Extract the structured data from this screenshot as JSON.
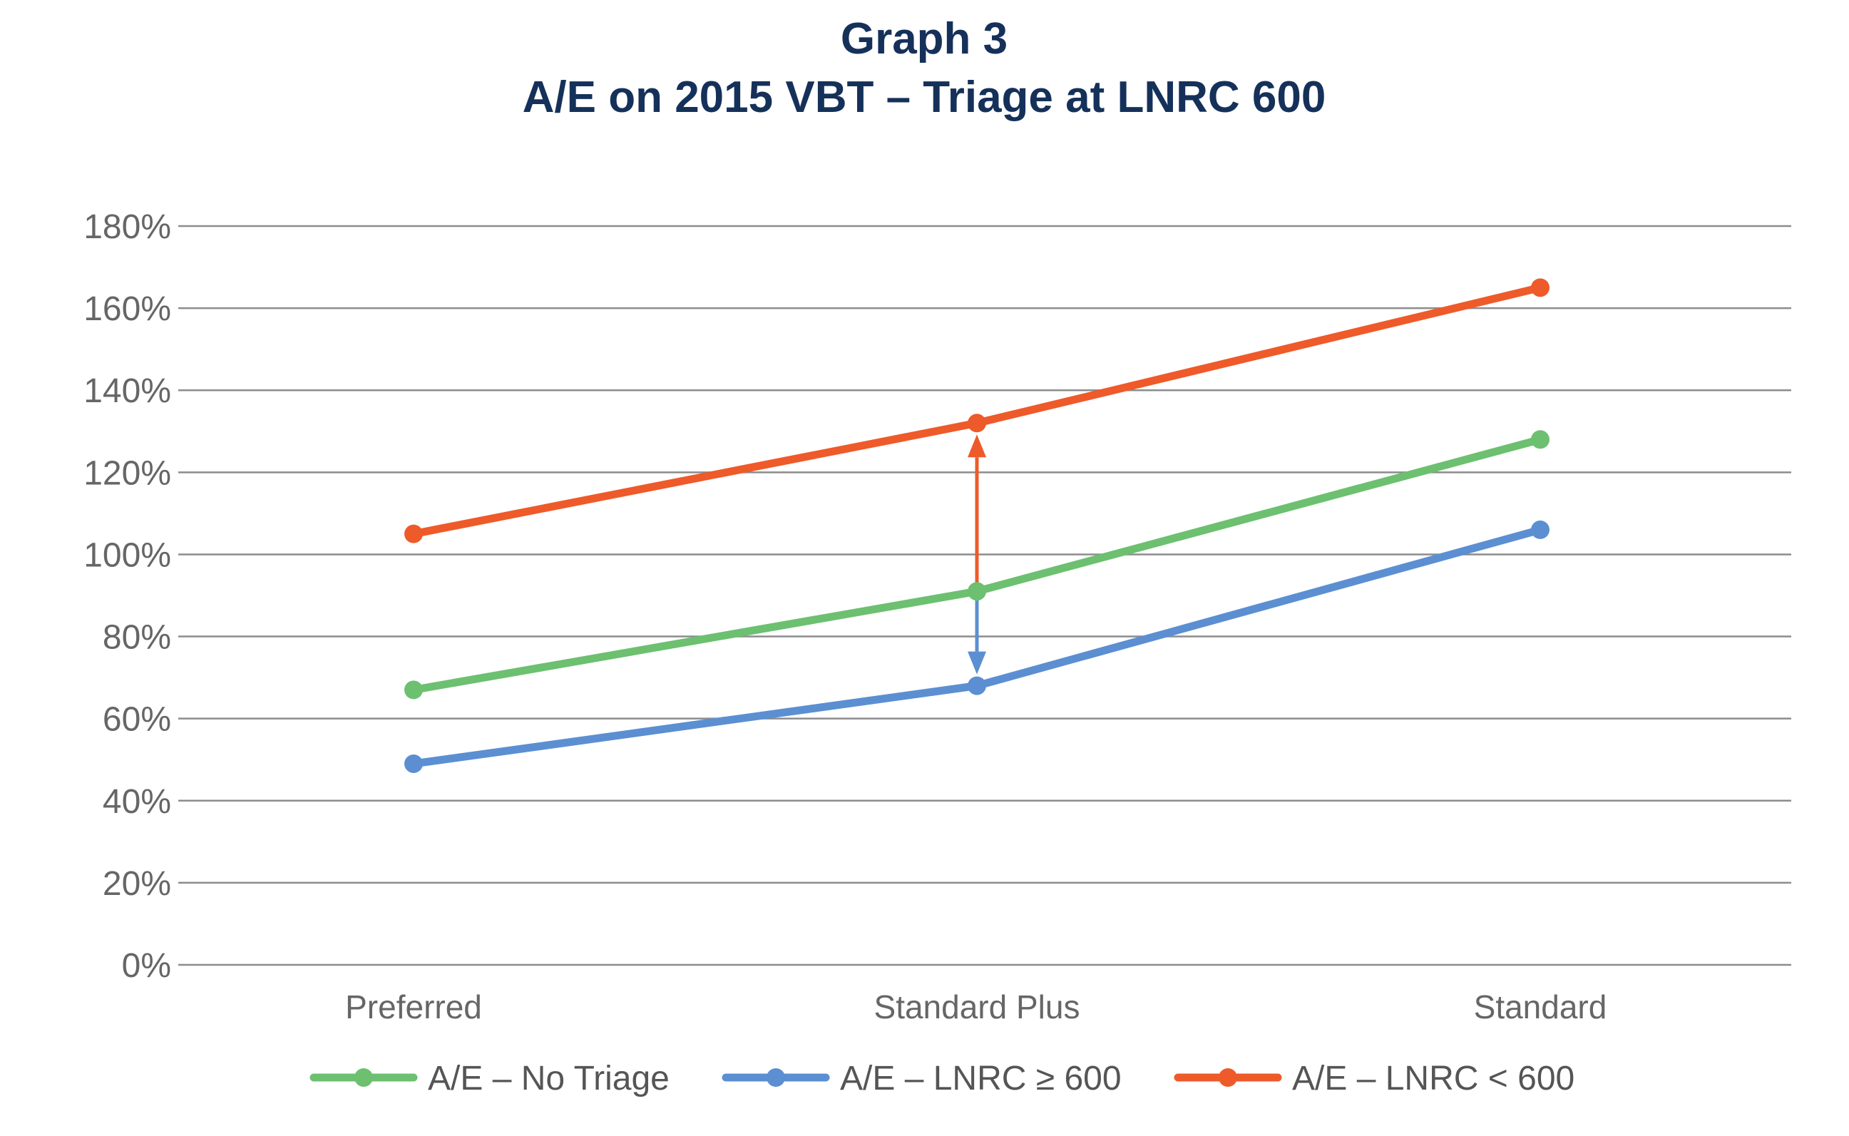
{
  "chart_data": {
    "type": "line",
    "title": "Graph 3",
    "subtitle": "A/E on 2015 VBT – Triage at LNRC 600",
    "xlabel": "",
    "ylabel": "",
    "categories": [
      "Preferred",
      "Standard Plus",
      "Standard"
    ],
    "ylim": [
      0,
      180
    ],
    "yticks": [
      0,
      20,
      40,
      60,
      80,
      100,
      120,
      140,
      160,
      180
    ],
    "ytick_labels": [
      "0%",
      "20%",
      "40%",
      "60%",
      "80%",
      "100%",
      "120%",
      "140%",
      "160%",
      "180%"
    ],
    "grid": true,
    "legend_position": "bottom",
    "series": [
      {
        "name": "A/E – No Triage",
        "color": "#6cc070",
        "values": [
          67,
          91,
          128
        ]
      },
      {
        "name": "A/E – LNRC ≥ 600",
        "color": "#5b8fd2",
        "values": [
          49,
          68,
          106
        ]
      },
      {
        "name": "A/E – LNRC < 600",
        "color": "#ee5a2a",
        "values": [
          105,
          132,
          165
        ]
      }
    ],
    "annotations": [
      {
        "type": "arrow",
        "category": "Standard Plus",
        "from": 91,
        "to": 132,
        "color": "#ee5a2a"
      },
      {
        "type": "arrow",
        "category": "Standard Plus",
        "from": 91,
        "to": 68,
        "color": "#5b8fd2"
      }
    ]
  }
}
